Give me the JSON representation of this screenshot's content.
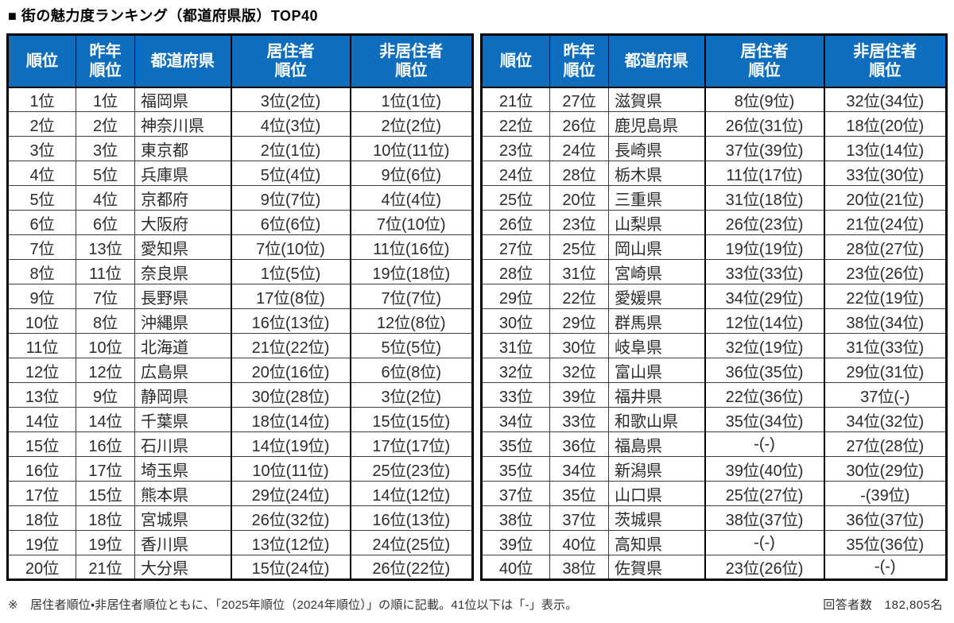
{
  "title": "■ 街の魅力度ランキング（都道府県版）TOP40",
  "colors": {
    "header_bg": "#0E6EBD"
  },
  "columns": [
    "順位",
    "昨年\n順位",
    "都道府県",
    "居住者\n順位",
    "非居住者\n順位"
  ],
  "tables": {
    "left": {
      "rows": [
        [
          "1位",
          "1位",
          "福岡県",
          "3位(2位)",
          "1位(1位)"
        ],
        [
          "2位",
          "2位",
          "神奈川県",
          "4位(3位)",
          "2位(2位)"
        ],
        [
          "3位",
          "3位",
          "東京都",
          "2位(1位)",
          "10位(11位)"
        ],
        [
          "4位",
          "5位",
          "兵庫県",
          "5位(4位)",
          "9位(6位)"
        ],
        [
          "5位",
          "4位",
          "京都府",
          "9位(7位)",
          "4位(4位)"
        ],
        [
          "6位",
          "6位",
          "大阪府",
          "6位(6位)",
          "7位(10位)"
        ],
        [
          "7位",
          "13位",
          "愛知県",
          "7位(10位)",
          "11位(16位)"
        ],
        [
          "8位",
          "11位",
          "奈良県",
          "1位(5位)",
          "19位(18位)"
        ],
        [
          "9位",
          "7位",
          "長野県",
          "17位(8位)",
          "7位(7位)"
        ],
        [
          "10位",
          "8位",
          "沖縄県",
          "16位(13位)",
          "12位(8位)"
        ],
        [
          "11位",
          "10位",
          "北海道",
          "21位(22位)",
          "5位(5位)"
        ],
        [
          "12位",
          "12位",
          "広島県",
          "20位(16位)",
          "6位(8位)"
        ],
        [
          "13位",
          "9位",
          "静岡県",
          "30位(28位)",
          "3位(2位)"
        ],
        [
          "14位",
          "14位",
          "千葉県",
          "18位(14位)",
          "15位(15位)"
        ],
        [
          "15位",
          "16位",
          "石川県",
          "14位(19位)",
          "17位(17位)"
        ],
        [
          "16位",
          "17位",
          "埼玉県",
          "10位(11位)",
          "25位(23位)"
        ],
        [
          "17位",
          "15位",
          "熊本県",
          "29位(24位)",
          "14位(12位)"
        ],
        [
          "18位",
          "18位",
          "宮城県",
          "26位(32位)",
          "16位(13位)"
        ],
        [
          "19位",
          "19位",
          "香川県",
          "13位(12位)",
          "24位(25位)"
        ],
        [
          "20位",
          "21位",
          "大分県",
          "15位(24位)",
          "26位(22位)"
        ]
      ]
    },
    "right": {
      "rows": [
        [
          "21位",
          "27位",
          "滋賀県",
          "8位(9位)",
          "32位(34位)"
        ],
        [
          "22位",
          "26位",
          "鹿児島県",
          "26位(31位)",
          "18位(20位)"
        ],
        [
          "23位",
          "24位",
          "長崎県",
          "37位(39位)",
          "13位(14位)"
        ],
        [
          "24位",
          "28位",
          "栃木県",
          "11位(17位)",
          "33位(30位)"
        ],
        [
          "25位",
          "20位",
          "三重県",
          "31位(18位)",
          "20位(21位)"
        ],
        [
          "26位",
          "23位",
          "山梨県",
          "26位(23位)",
          "21位(24位)"
        ],
        [
          "27位",
          "25位",
          "岡山県",
          "19位(19位)",
          "28位(27位)"
        ],
        [
          "28位",
          "31位",
          "宮崎県",
          "33位(33位)",
          "23位(26位)"
        ],
        [
          "29位",
          "22位",
          "愛媛県",
          "34位(29位)",
          "22位(19位)"
        ],
        [
          "30位",
          "29位",
          "群馬県",
          "12位(14位)",
          "38位(34位)"
        ],
        [
          "31位",
          "30位",
          "岐阜県",
          "32位(19位)",
          "31位(33位)"
        ],
        [
          "32位",
          "32位",
          "富山県",
          "36位(35位)",
          "29位(31位)"
        ],
        [
          "33位",
          "39位",
          "福井県",
          "22位(36位)",
          "37位(-)"
        ],
        [
          "34位",
          "33位",
          "和歌山県",
          "35位(34位)",
          "34位(32位)"
        ],
        [
          "35位",
          "36位",
          "福島県",
          "-(-)",
          "27位(28位)"
        ],
        [
          "35位",
          "34位",
          "新潟県",
          "39位(40位)",
          "30位(29位)"
        ],
        [
          "37位",
          "35位",
          "山口県",
          "25位(27位)",
          "-(39位)"
        ],
        [
          "38位",
          "37位",
          "茨城県",
          "38位(37位)",
          "36位(37位)"
        ],
        [
          "39位",
          "40位",
          "高知県",
          "-(-)",
          "35位(36位)"
        ],
        [
          "40位",
          "38位",
          "佐賀県",
          "23位(26位)",
          "-(-)"
        ]
      ]
    }
  },
  "footer": {
    "note": "※　居住者順位・非居住者順位ともに、「2025年順位（2024年順位）」の順に記載。41位以下は「-」表示。",
    "respondents": "回答者数　182,805名"
  }
}
